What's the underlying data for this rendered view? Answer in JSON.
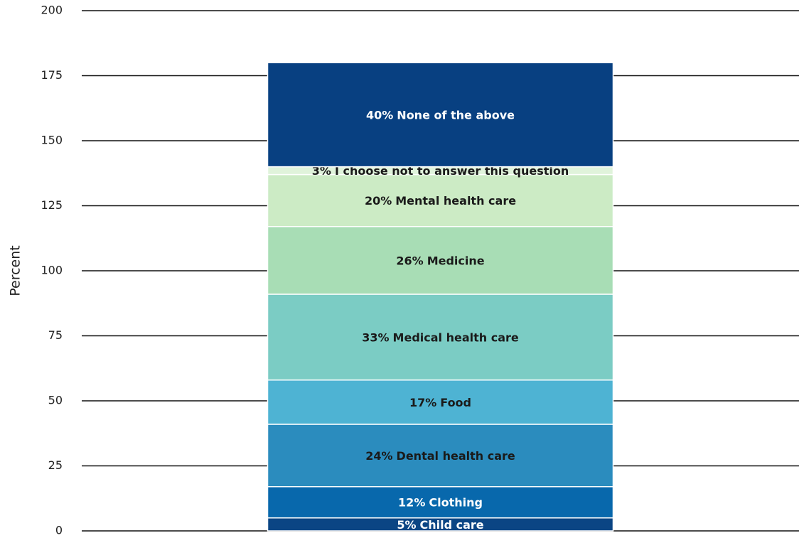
{
  "chart_data": {
    "type": "stacked_bar",
    "y_label": "Percent",
    "categories": [
      null
    ],
    "series": [
      {
        "name": "Child care",
        "color": "#0b4584",
        "values": [
          5
        ],
        "value_labels": [
          "5%"
        ]
      },
      {
        "name": "Clothing",
        "color": "#0868ac",
        "values": [
          12
        ],
        "value_labels": [
          "12%"
        ]
      },
      {
        "name": "Dental health care",
        "color": "#2b8cbe",
        "values": [
          24
        ],
        "value_labels": [
          "24%"
        ]
      },
      {
        "name": "Food",
        "color": "#4eb3d3",
        "values": [
          17
        ],
        "value_labels": [
          "17%"
        ]
      },
      {
        "name": "Medical health care",
        "color": "#7bccc4",
        "values": [
          33
        ],
        "value_labels": [
          "33%"
        ]
      },
      {
        "name": "Medicine",
        "color": "#a8ddb5",
        "values": [
          26
        ],
        "value_labels": [
          "26%"
        ]
      },
      {
        "name": "Mental health care",
        "color": "#ccebc5",
        "values": [
          20
        ],
        "value_labels": [
          "20%"
        ]
      },
      {
        "name": "I choose not to answer this question",
        "color": "#e0f3db",
        "values": [
          3
        ],
        "value_labels": [
          "3%"
        ]
      },
      {
        "name": "None of the above",
        "color": "#084081",
        "values": [
          40
        ],
        "value_labels": [
          "40%"
        ]
      }
    ],
    "ylim": [
      0,
      200
    ],
    "yticks": [
      0,
      25,
      50,
      75,
      100,
      125,
      150,
      175,
      200
    ],
    "grid": true
  }
}
